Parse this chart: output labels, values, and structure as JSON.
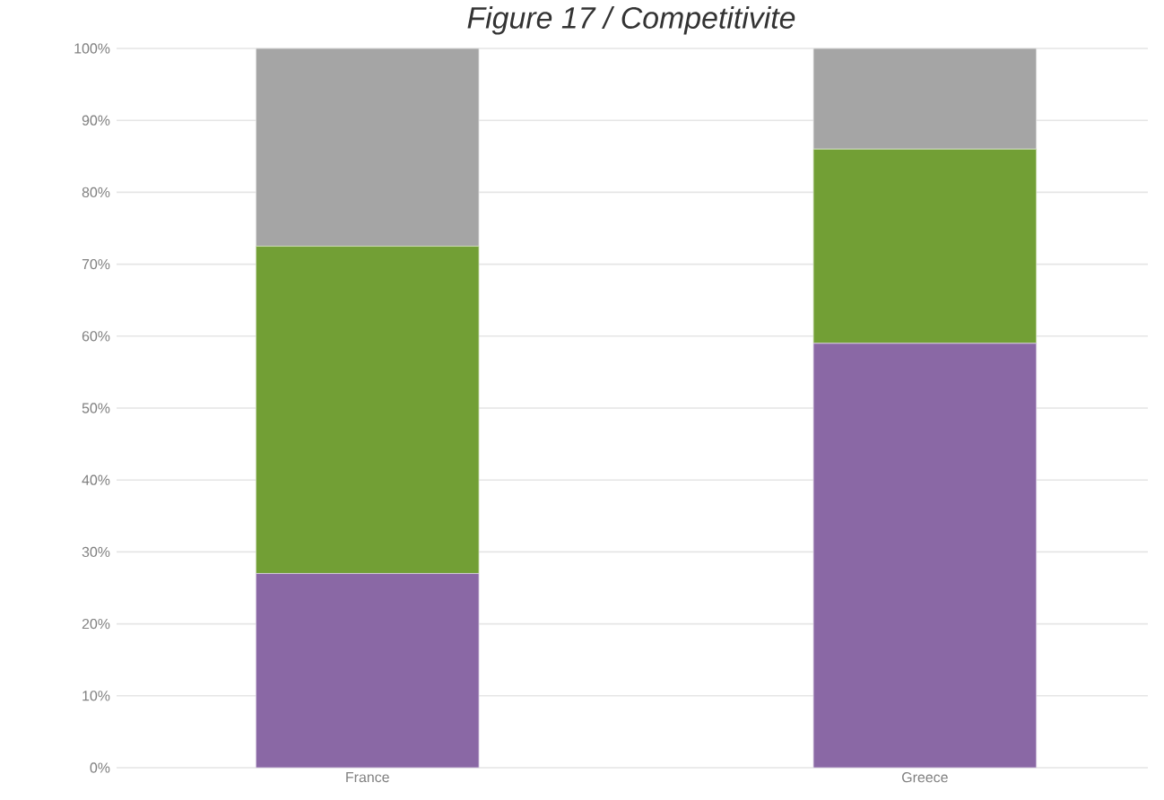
{
  "chart_data": {
    "type": "bar",
    "title": "Figure 17 / Competitivite",
    "stacked": true,
    "categories": [
      "France",
      "Greece"
    ],
    "series": [
      {
        "color": "#8a68a5",
        "values": [
          27,
          59
        ]
      },
      {
        "color": "#729f35",
        "values": [
          45.5,
          27
        ]
      },
      {
        "color": "#a5a5a5",
        "values": [
          27.5,
          14
        ]
      }
    ],
    "ylim": [
      0,
      100
    ],
    "yticks": [
      {
        "value": 0,
        "label": "0%"
      },
      {
        "value": 10,
        "label": "10%"
      },
      {
        "value": 20,
        "label": "20%"
      },
      {
        "value": 30,
        "label": "30%"
      },
      {
        "value": 40,
        "label": "40%"
      },
      {
        "value": 50,
        "label": "50%"
      },
      {
        "value": 60,
        "label": "60%"
      },
      {
        "value": 70,
        "label": "70%"
      },
      {
        "value": 80,
        "label": "80%"
      },
      {
        "value": 90,
        "label": "90%"
      },
      {
        "value": 100,
        "label": "100%"
      }
    ],
    "grid": "y"
  }
}
